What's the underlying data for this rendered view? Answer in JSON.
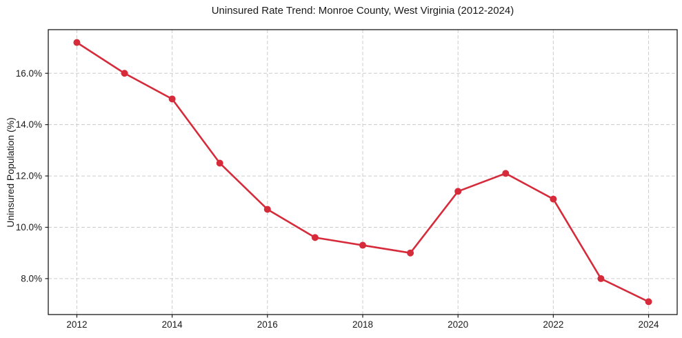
{
  "figure": {
    "title": "Uninsured Rate Trend: Monroe County, West Virginia (2012-2024)"
  },
  "chart_data": {
    "type": "line",
    "title": "Uninsured Rate Trend: Monroe County, West Virginia (2012-2024)",
    "xlabel": "",
    "ylabel": "Uninsured Population (%)",
    "x": [
      2012,
      2013,
      2014,
      2015,
      2016,
      2017,
      2018,
      2019,
      2020,
      2021,
      2022,
      2023,
      2024
    ],
    "series": [
      {
        "name": "Uninsured Population (%)",
        "values": [
          17.2,
          16.0,
          15.0,
          12.5,
          10.7,
          9.6,
          9.3,
          9.0,
          11.4,
          12.1,
          11.1,
          8.0,
          7.1
        ],
        "color": "#d62b3a",
        "marker": "circle",
        "line_width": 2.6,
        "marker_radius": 5
      }
    ],
    "xlim": [
      2011.4,
      2024.6
    ],
    "ylim": [
      6.6,
      17.7
    ],
    "xticks": [
      2012,
      2014,
      2016,
      2018,
      2020,
      2022,
      2024
    ],
    "xtick_labels": [
      "2012",
      "2014",
      "2016",
      "2018",
      "2020",
      "2022",
      "2024"
    ],
    "yticks": [
      8,
      10,
      12,
      14,
      16
    ],
    "ytick_labels": [
      "8.0%",
      "10.0%",
      "12.0%",
      "14.0%",
      "16.0%"
    ],
    "grid": true,
    "grid_style": "dashed",
    "legend": false,
    "colors": {
      "line": "#d62b3a",
      "grid": "#cccccc",
      "spine": "#1a1a1a",
      "text": "#1a1a1a",
      "background": "#ffffff"
    }
  }
}
